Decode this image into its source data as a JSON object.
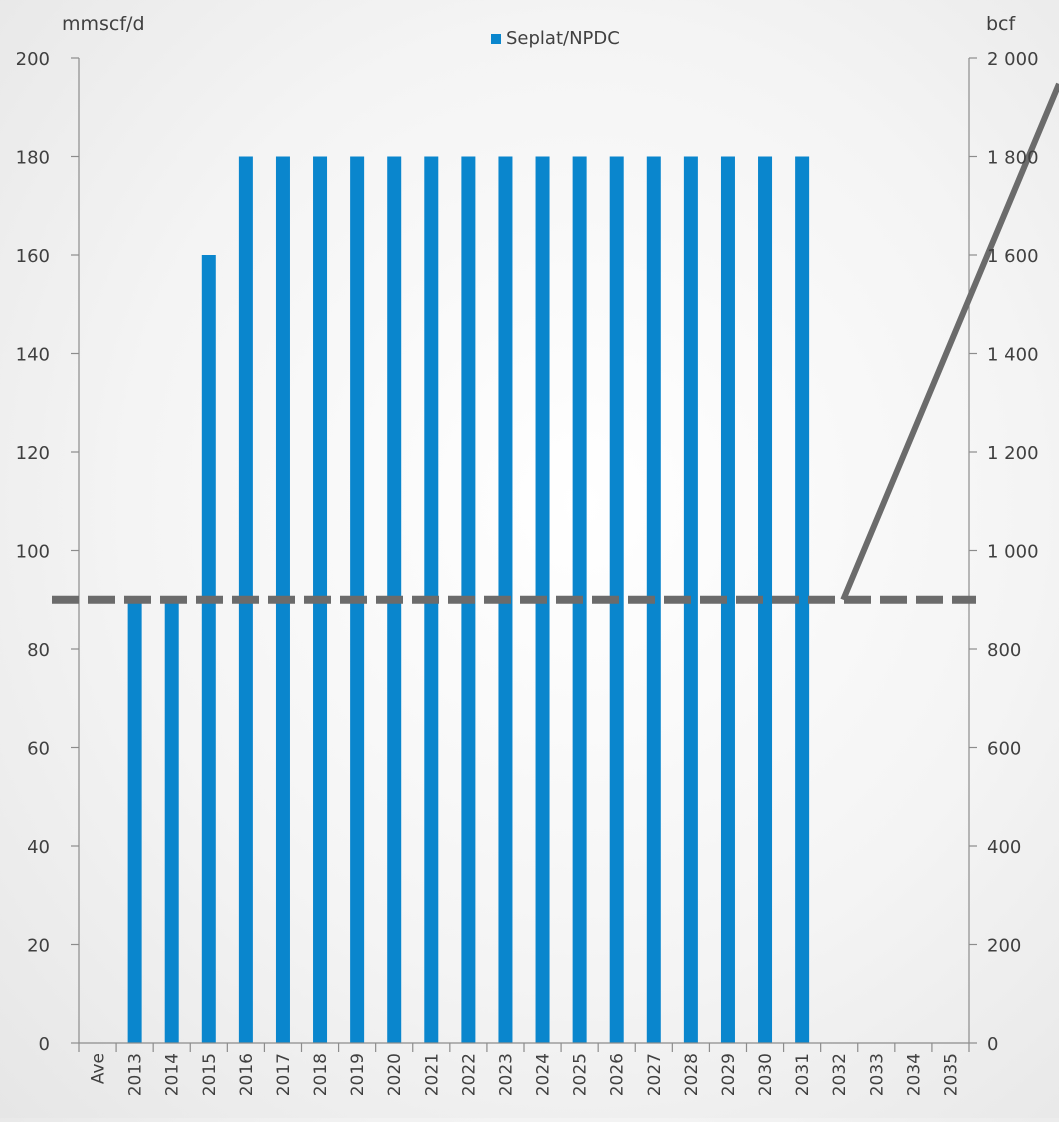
{
  "chart_data": {
    "type": "bar",
    "title": "",
    "left_axis_unit": "mmscf/d",
    "right_axis_unit": "bcf",
    "categories": [
      "Ave",
      "2013",
      "2014",
      "2015",
      "2016",
      "2017",
      "2018",
      "2019",
      "2020",
      "2021",
      "2022",
      "2023",
      "2024",
      "2025",
      "2026",
      "2027",
      "2028",
      "2029",
      "2030",
      "2031",
      "2032",
      "2033",
      "2034",
      "2035"
    ],
    "series": [
      {
        "name": "Seplat/NPDC",
        "color": "#0a86cd",
        "values": [
          0,
          90,
          90,
          160,
          180,
          180,
          180,
          180,
          180,
          180,
          180,
          180,
          180,
          180,
          180,
          180,
          180,
          180,
          180,
          180,
          0,
          0,
          0,
          0
        ]
      }
    ],
    "reference_line": {
      "style": "dashed",
      "color": "#6b6b6b",
      "left_axis_value": 90
    },
    "cumulative_line": {
      "color": "#6b6b6b",
      "points": [
        {
          "category": "2032",
          "right_axis_value": 900
        },
        {
          "category": "2035",
          "right_axis_value": 1440
        }
      ]
    },
    "left_ylim": [
      0,
      200
    ],
    "left_ticks": [
      0,
      20,
      40,
      60,
      80,
      100,
      120,
      140,
      160,
      180,
      200
    ],
    "right_ylim": [
      0,
      2000
    ],
    "right_tick_labels": [
      "0",
      "200",
      "400",
      "600",
      "800",
      "1 000",
      "1 200",
      "1 400",
      "1 600",
      "1 800",
      "2 000"
    ],
    "legend_position": "top-center",
    "grid": false
  }
}
